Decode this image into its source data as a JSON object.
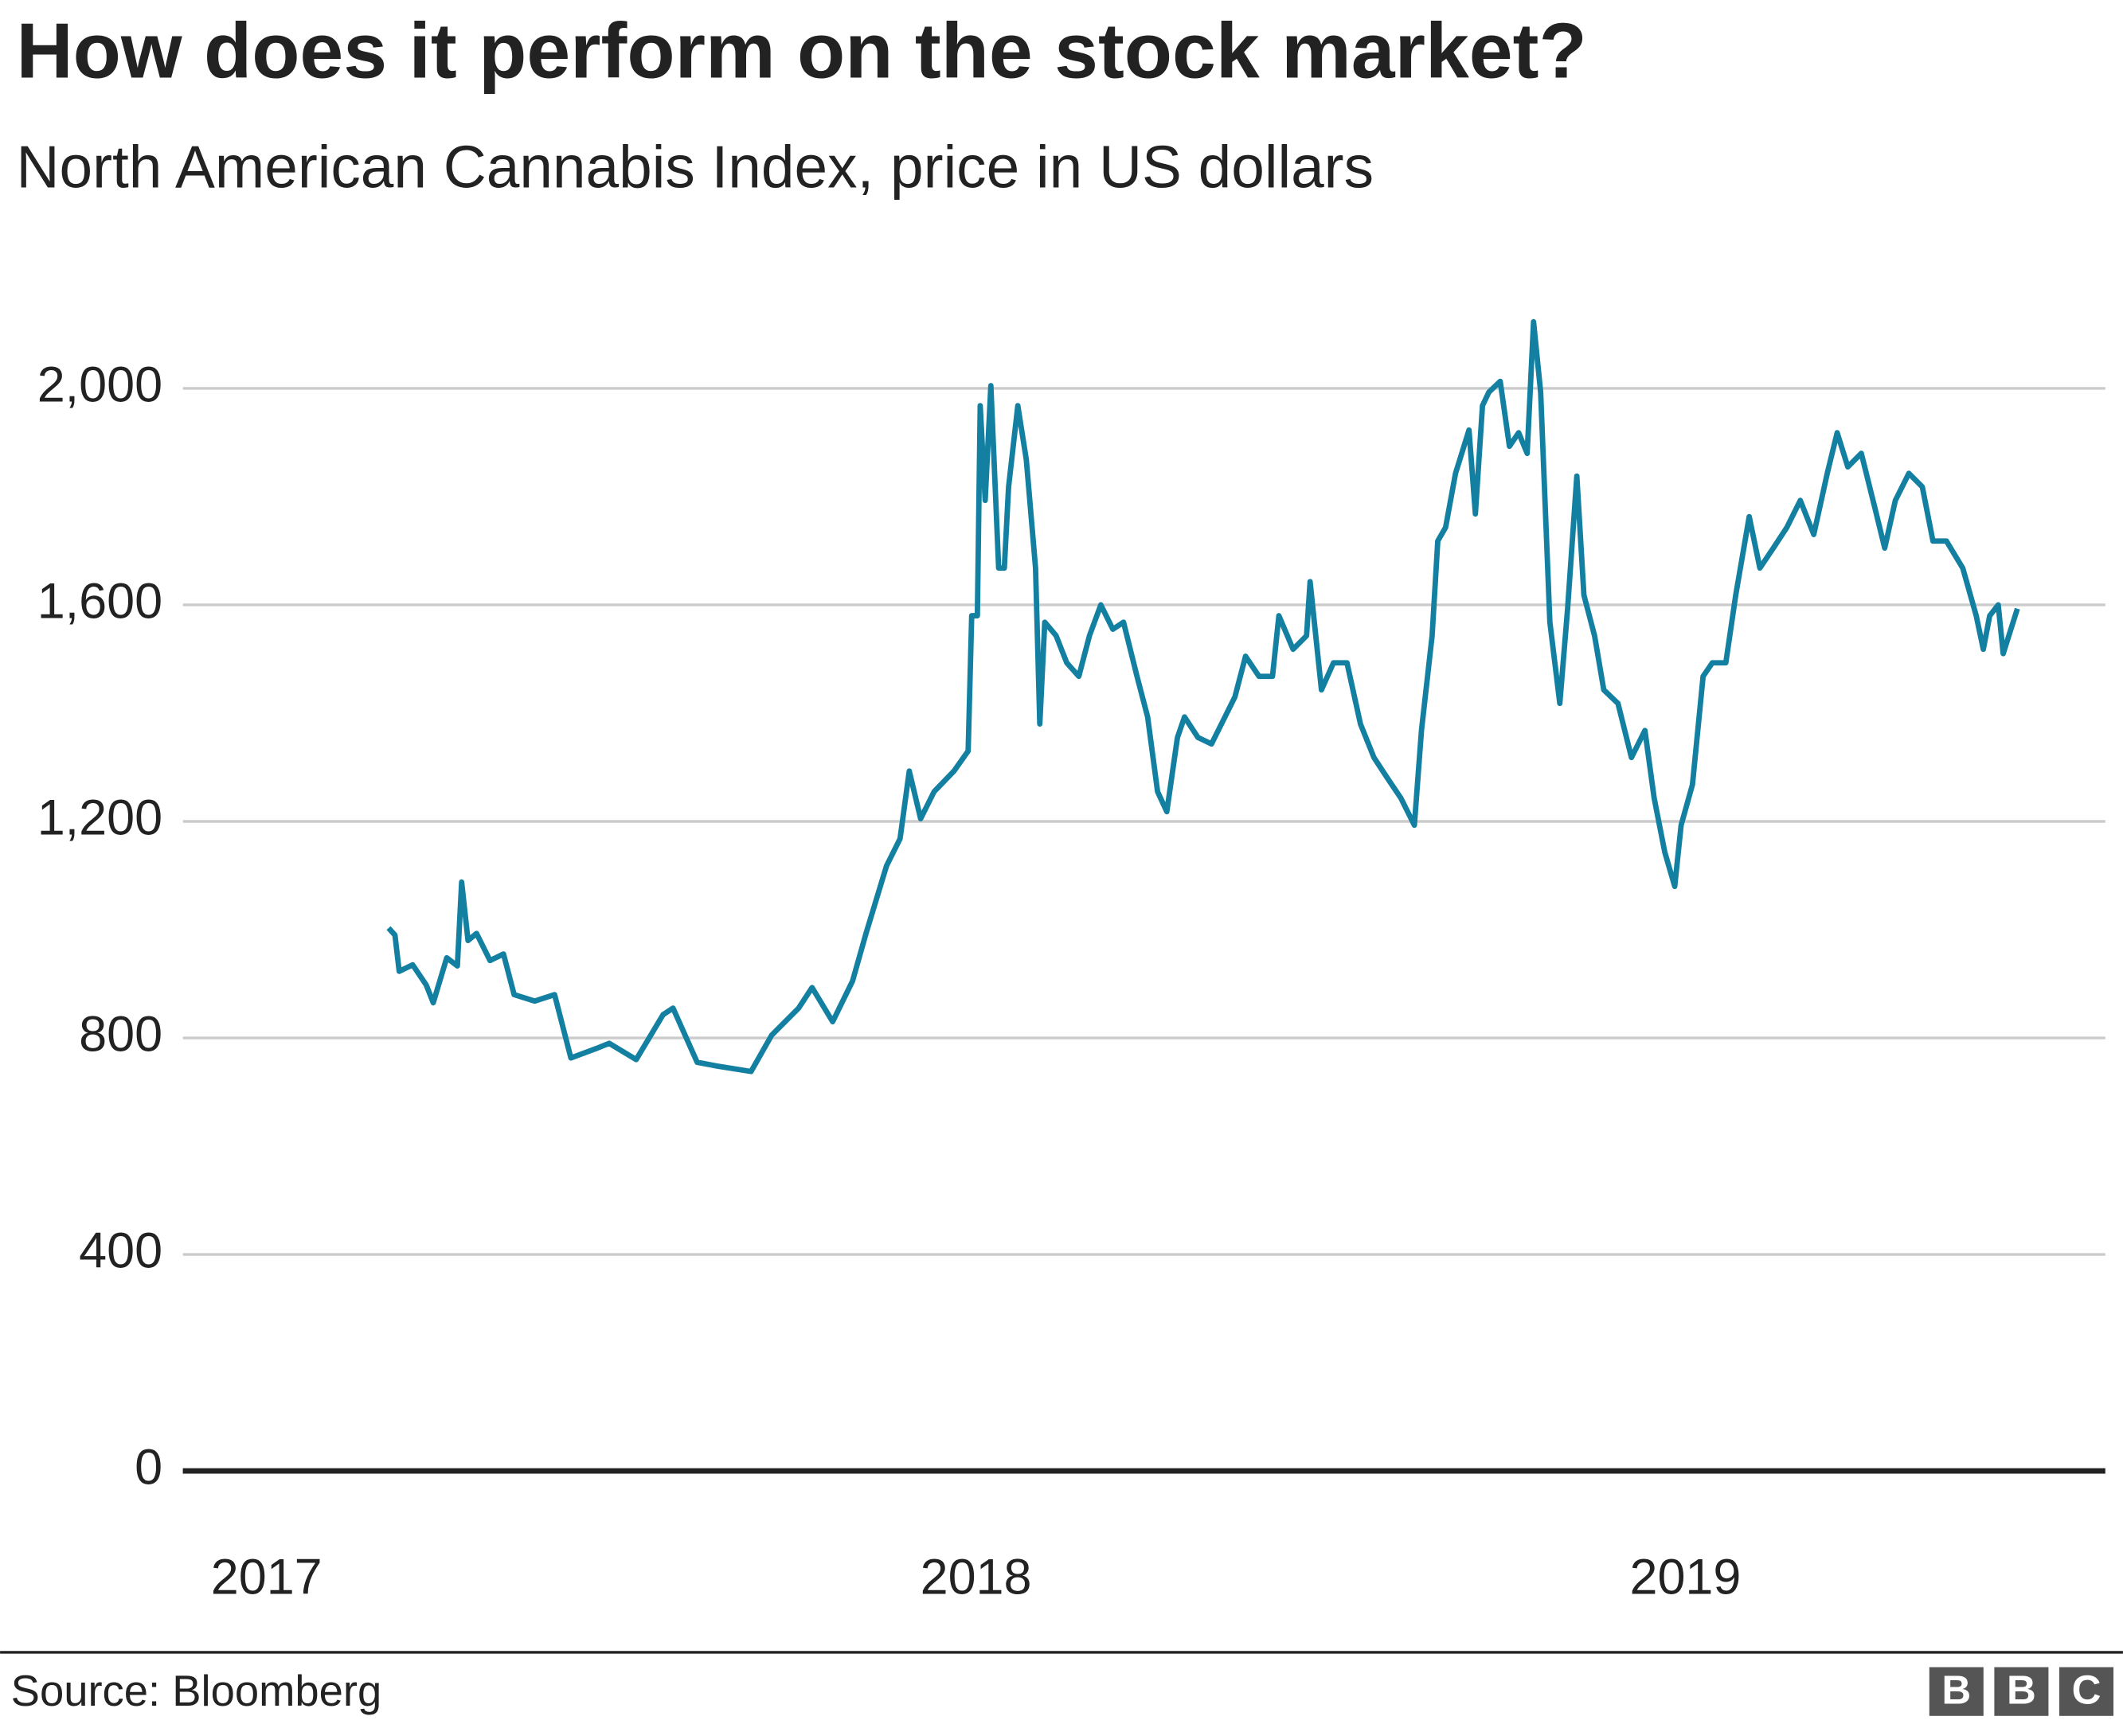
{
  "chart_data": {
    "type": "line",
    "title": "How does it perform on the stock market?",
    "subtitle": "North American Cannabis Index, price in US dollars",
    "source": "Source: Bloomberg",
    "logo": [
      "B",
      "B",
      "C"
    ],
    "xlim": [
      2016.882,
      2019.592
    ],
    "xticks": [
      2017,
      2018,
      2019
    ],
    "ylim": [
      0,
      2200
    ],
    "yticks": [
      0,
      400,
      800,
      {
        "value": 1200,
        "label": "1,200"
      },
      {
        "value": 1600,
        "label": "1,600"
      },
      {
        "value": 2000,
        "label": "2,000"
      }
    ],
    "grid": true,
    "series": [
      {
        "color": "#1380a1",
        "x": [
          2017.172,
          2017.181,
          2017.187,
          2017.206,
          2017.225,
          2017.235,
          2017.254,
          2017.269,
          2017.275,
          2017.284,
          2017.296,
          2017.315,
          2017.334,
          2017.349,
          2017.378,
          2017.406,
          2017.429,
          2017.464,
          2017.483,
          2017.521,
          2017.559,
          2017.573,
          2017.607,
          2017.635,
          2017.683,
          2017.712,
          2017.75,
          2017.769,
          2017.798,
          2017.826,
          2017.845,
          2017.874,
          2017.893,
          2017.906,
          2017.922,
          2017.941,
          2017.969,
          2017.989,
          2017.994,
          2018.002,
          2018.006,
          2018.013,
          2018.021,
          2018.032,
          2018.04,
          2018.046,
          2018.059,
          2018.071,
          2018.084,
          2018.09,
          2018.097,
          2018.113,
          2018.128,
          2018.145,
          2018.16,
          2018.176,
          2018.193,
          2018.208,
          2018.227,
          2018.242,
          2018.256,
          2018.269,
          2018.284,
          2018.294,
          2018.313,
          2018.332,
          2018.351,
          2018.365,
          2018.38,
          2018.399,
          2018.418,
          2018.427,
          2018.447,
          2018.466,
          2018.471,
          2018.487,
          2018.504,
          2018.523,
          2018.542,
          2018.561,
          2018.58,
          2018.599,
          2018.618,
          2018.628,
          2018.643,
          2018.651,
          2018.662,
          2018.676,
          2018.695,
          2018.704,
          2018.714,
          2018.723,
          2018.739,
          2018.752,
          2018.765,
          2018.777,
          2018.786,
          2018.796,
          2018.809,
          2018.823,
          2018.834,
          2018.847,
          2018.857,
          2018.872,
          2018.885,
          2018.905,
          2018.924,
          2018.943,
          2018.956,
          2018.971,
          2018.985,
          2018.994,
          2019.01,
          2019.025,
          2019.038,
          2019.057,
          2019.071,
          2019.09,
          2019.105,
          2019.124,
          2019.143,
          2019.162,
          2019.181,
          2019.2,
          2019.214,
          2019.229,
          2019.248,
          2019.267,
          2019.281,
          2019.296,
          2019.315,
          2019.334,
          2019.349,
          2019.368,
          2019.391,
          2019.41,
          2019.42,
          2019.429,
          2019.441,
          2019.448,
          2019.468
        ],
        "values": [
          1003,
          990,
          923,
          935,
          898,
          865,
          948,
          933,
          1088,
          980,
          993,
          943,
          955,
          880,
          868,
          880,
          763,
          780,
          790,
          760,
          843,
          855,
          755,
          748,
          738,
          805,
          855,
          893,
          830,
          905,
          993,
          1118,
          1168,
          1293,
          1205,
          1255,
          1293,
          1330,
          1580,
          1580,
          1968,
          1793,
          2005,
          1668,
          1668,
          1818,
          1968,
          1868,
          1668,
          1380,
          1568,
          1543,
          1493,
          1468,
          1543,
          1600,
          1555,
          1568,
          1468,
          1393,
          1255,
          1218,
          1355,
          1393,
          1355,
          1343,
          1393,
          1430,
          1505,
          1468,
          1468,
          1580,
          1518,
          1543,
          1643,
          1443,
          1493,
          1493,
          1380,
          1318,
          1280,
          1243,
          1193,
          1368,
          1543,
          1718,
          1743,
          1843,
          1923,
          1768,
          1968,
          1993,
          2013,
          1893,
          1918,
          1880,
          2123,
          1993,
          1568,
          1418,
          1593,
          1838,
          1618,
          1543,
          1443,
          1418,
          1318,
          1368,
          1243,
          1143,
          1080,
          1193,
          1268,
          1468,
          1493,
          1493,
          1618,
          1763,
          1668,
          1705,
          1743,
          1793,
          1730,
          1843,
          1918,
          1855,
          1880,
          1780,
          1705,
          1793,
          1843,
          1818,
          1718,
          1718,
          1668,
          1580,
          1518,
          1580,
          1600,
          1510,
          1593
        ]
      }
    ]
  }
}
